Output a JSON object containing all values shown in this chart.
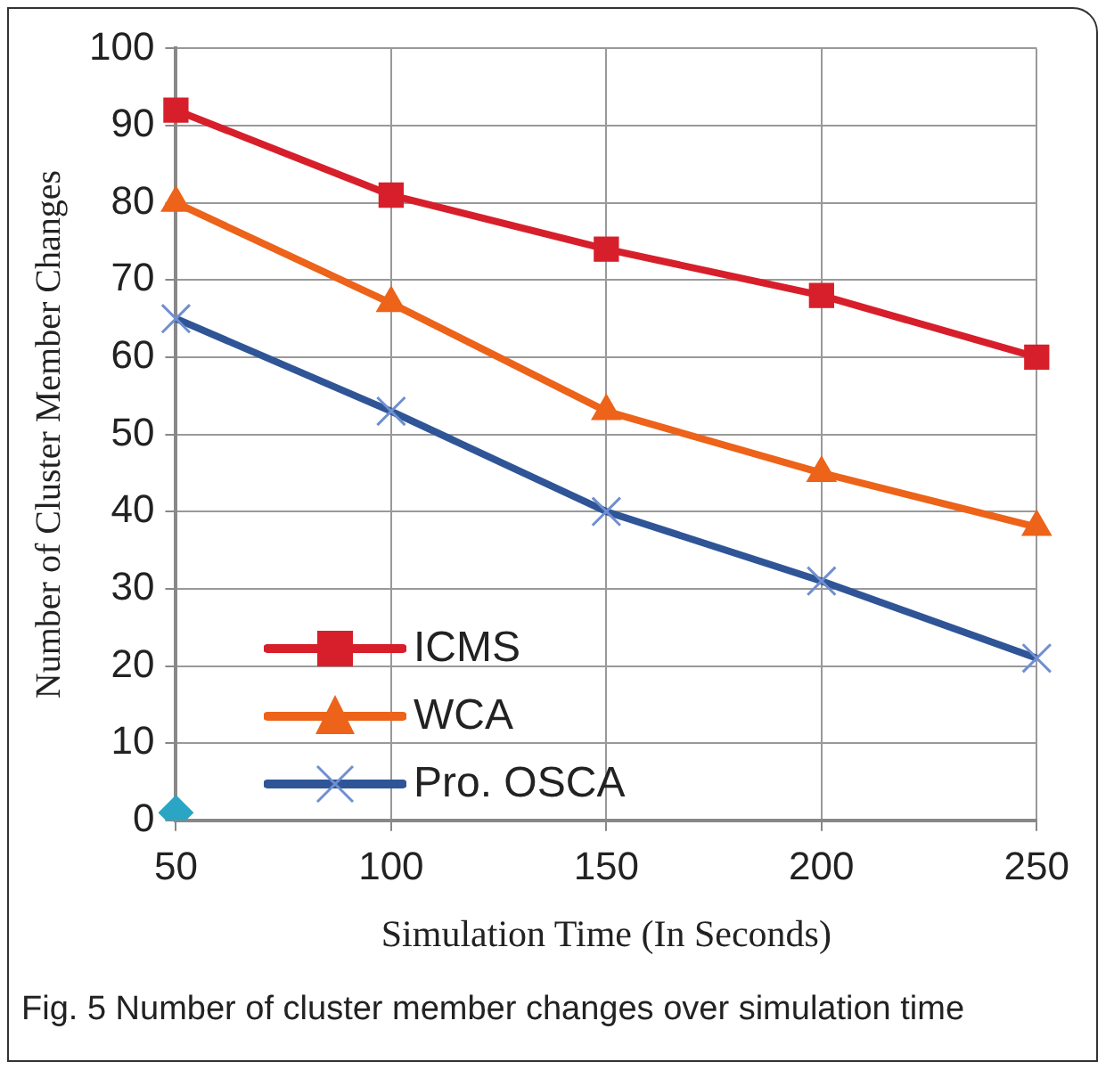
{
  "chart_data": {
    "type": "line",
    "xlabel": "Simulation Time (In Seconds)",
    "ylabel": "Number of Cluster Member Changes",
    "categories": [
      "50",
      "100",
      "150",
      "200",
      "250"
    ],
    "series": [
      {
        "name": "ICMS",
        "color": "#d71f2b",
        "marker": "square",
        "values": [
          92,
          81,
          74,
          68,
          60
        ]
      },
      {
        "name": "WCA",
        "color": "#ec6319",
        "marker": "triangle",
        "values": [
          80,
          67,
          53,
          45,
          38
        ]
      },
      {
        "name": "Pro. OSCA",
        "color": "#2f5597",
        "marker": "cross",
        "values": [
          65,
          53,
          40,
          31,
          21
        ]
      },
      {
        "type": "scatter",
        "color": "#2aa6c4",
        "marker": "diamond",
        "x": [
          "50"
        ],
        "values": [
          1
        ]
      }
    ],
    "ylim": [
      0,
      100
    ],
    "yticks": [
      0,
      10,
      20,
      30,
      40,
      50,
      60,
      70,
      80,
      90,
      100
    ],
    "grid": true,
    "legend": "bottom left",
    "line_style": "solid",
    "annotations": [
      "Fig. 5 Number of cluster member changes over simulation time"
    ]
  }
}
